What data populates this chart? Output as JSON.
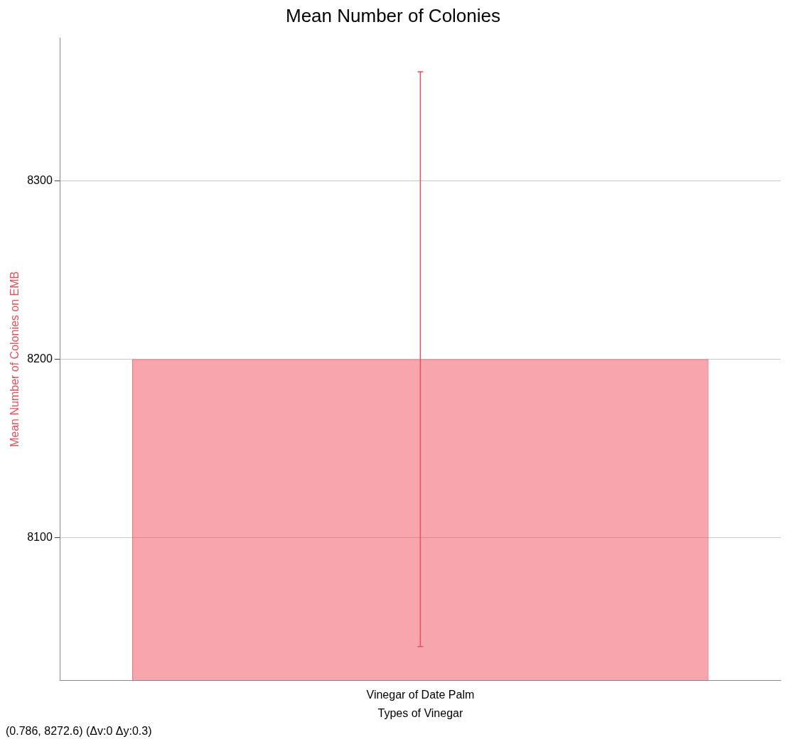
{
  "chart_data": {
    "type": "bar",
    "title": "Mean Number of Colonies",
    "xlabel": "Types of Vinegar",
    "ylabel": "Mean Number of Colonies on EMB",
    "categories": [
      "Vinegar of Date Palm"
    ],
    "series": [
      {
        "color": "#ee4d5a",
        "values": [
          8200
        ],
        "errors": [
          [
            8039,
            8361
          ]
        ]
      }
    ],
    "ylim": [
      8020,
      8380
    ],
    "yticks": [
      8100,
      8200,
      8300
    ],
    "grid": "y",
    "legend": false,
    "annotations": [
      "(0.786, 8272.6) (Δv:0 Δy:0.3)"
    ]
  }
}
